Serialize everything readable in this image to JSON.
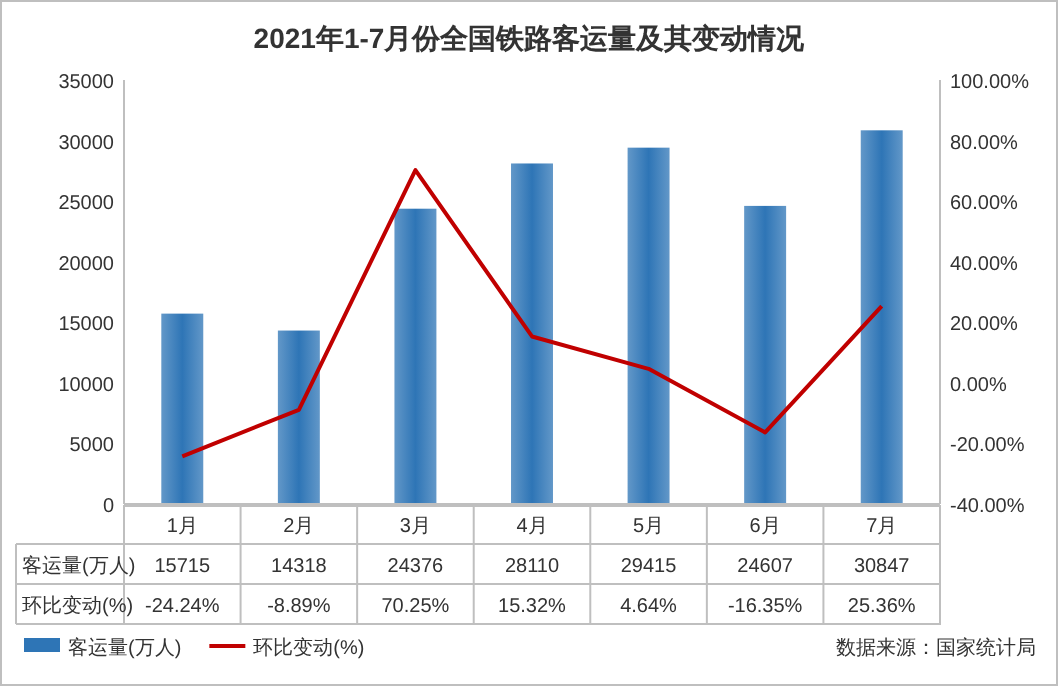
{
  "chart_data": {
    "type": "bar",
    "title": "2021年1-7月份全国铁路客运量及其变动情况",
    "categories": [
      "1月",
      "2月",
      "3月",
      "4月",
      "5月",
      "6月",
      "7月"
    ],
    "series": [
      {
        "name": "客运量(万人)",
        "color": "#2e75b6",
        "values": [
          15715,
          14318,
          24376,
          28110,
          29415,
          24607,
          30847
        ],
        "value_labels": [
          "15715",
          "14318",
          "24376",
          "28110",
          "29415",
          "24607",
          "30847"
        ]
      },
      {
        "name": "环比变动(%)",
        "type": "line",
        "axis": "y2",
        "color": "#c00000",
        "values": [
          -24.24,
          -8.89,
          70.25,
          15.32,
          4.64,
          -16.35,
          25.36
        ],
        "value_labels": [
          "-24.24%",
          "-8.89%",
          "70.25%",
          "15.32%",
          "4.64%",
          "-16.35%",
          "25.36%"
        ]
      }
    ],
    "ylim": [
      0,
      35000
    ],
    "yticks": [
      0,
      5000,
      10000,
      15000,
      20000,
      25000,
      30000,
      35000
    ],
    "y2lim": [
      -40,
      100
    ],
    "y2ticks": [
      {
        "value": -40,
        "label": "-40.00%"
      },
      {
        "value": -20,
        "label": "-20.00%"
      },
      {
        "value": 0,
        "label": "0.00%"
      },
      {
        "value": 20,
        "label": "20.00%"
      },
      {
        "value": 40,
        "label": "40.00%"
      },
      {
        "value": 60,
        "label": "60.00%"
      },
      {
        "value": 80,
        "label": "80.00%"
      },
      {
        "value": 100,
        "label": "100.00%"
      }
    ],
    "legend": "bottom left",
    "annotations": [
      "数据来源：国家统计局"
    ]
  }
}
